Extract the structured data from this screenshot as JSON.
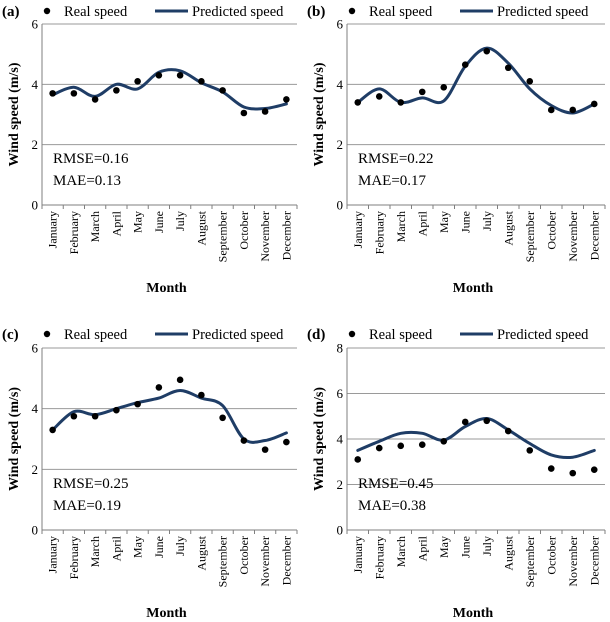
{
  "colors": {
    "line": "#1f3d66",
    "point": "#000000",
    "grid": "#9a9a9a",
    "axis": "#7f7f7f"
  },
  "chart_data": [
    {
      "type": "line",
      "panel_label": "(a)",
      "legend": {
        "real": "Real speed",
        "predicted": "Predicted speed"
      },
      "categories": [
        "January",
        "February",
        "March",
        "April",
        "May",
        "June",
        "July",
        "August",
        "September",
        "October",
        "November",
        "December"
      ],
      "series": [
        {
          "name": "Real speed",
          "kind": "scatter",
          "values": [
            3.7,
            3.7,
            3.5,
            3.8,
            4.1,
            4.3,
            4.3,
            4.1,
            3.8,
            3.05,
            3.1,
            3.5
          ]
        },
        {
          "name": "Predicted speed",
          "kind": "line",
          "values": [
            3.65,
            3.9,
            3.6,
            4.0,
            3.85,
            4.4,
            4.45,
            4.05,
            3.75,
            3.25,
            3.2,
            3.35
          ]
        }
      ],
      "ylim": [
        0,
        6
      ],
      "yticks": [
        0,
        2,
        4,
        6
      ],
      "xlabel": "Month",
      "ylabel": "Wind speed (m/s)",
      "stats": [
        "RMSE=0.16",
        "MAE=0.13"
      ]
    },
    {
      "type": "line",
      "panel_label": "(b)",
      "legend": {
        "real": "Real speed",
        "predicted": "Predicted speed"
      },
      "categories": [
        "January",
        "February",
        "March",
        "April",
        "May",
        "June",
        "July",
        "August",
        "September",
        "October",
        "November",
        "December"
      ],
      "series": [
        {
          "name": "Real speed",
          "kind": "scatter",
          "values": [
            3.4,
            3.6,
            3.4,
            3.75,
            3.9,
            4.65,
            5.1,
            4.55,
            4.1,
            3.15,
            3.15,
            3.35
          ]
        },
        {
          "name": "Predicted speed",
          "kind": "line",
          "values": [
            3.4,
            3.85,
            3.4,
            3.55,
            3.45,
            4.6,
            5.2,
            4.7,
            3.85,
            3.3,
            3.05,
            3.35
          ]
        }
      ],
      "ylim": [
        0,
        6
      ],
      "yticks": [
        0,
        2,
        4,
        6
      ],
      "xlabel": "Month",
      "ylabel": "Wind speed (m/s)",
      "stats": [
        "RMSE=0.22",
        "MAE=0.17"
      ]
    },
    {
      "type": "line",
      "panel_label": "(c)",
      "legend": {
        "real": "Real speed",
        "predicted": "Predicted speed"
      },
      "categories": [
        "January",
        "February",
        "March",
        "April",
        "May",
        "June",
        "July",
        "August",
        "September",
        "October",
        "November",
        "December"
      ],
      "series": [
        {
          "name": "Real speed",
          "kind": "scatter",
          "values": [
            3.3,
            3.75,
            3.75,
            3.95,
            4.15,
            4.7,
            4.95,
            4.45,
            3.7,
            2.95,
            2.65,
            2.9
          ]
        },
        {
          "name": "Predicted speed",
          "kind": "line",
          "values": [
            3.3,
            3.9,
            3.8,
            4.0,
            4.2,
            4.35,
            4.6,
            4.35,
            4.1,
            3.0,
            2.95,
            3.2
          ]
        }
      ],
      "ylim": [
        0,
        6
      ],
      "yticks": [
        0,
        2,
        4,
        6
      ],
      "xlabel": "Month",
      "ylabel": "Wind speed (m/s)",
      "stats": [
        "RMSE=0.25",
        "MAE=0.19"
      ]
    },
    {
      "type": "line",
      "panel_label": "(d)",
      "legend": {
        "real": "Real speed",
        "predicted": "Predicted speed"
      },
      "categories": [
        "January",
        "February",
        "March",
        "April",
        "May",
        "June",
        "July",
        "August",
        "September",
        "October",
        "November",
        "December"
      ],
      "series": [
        {
          "name": "Real speed",
          "kind": "scatter",
          "values": [
            3.1,
            3.6,
            3.7,
            3.75,
            3.9,
            4.75,
            4.8,
            4.35,
            3.5,
            2.7,
            2.5,
            2.65
          ]
        },
        {
          "name": "Predicted speed",
          "kind": "line",
          "values": [
            3.5,
            3.9,
            4.25,
            4.25,
            3.95,
            4.55,
            4.9,
            4.4,
            3.8,
            3.3,
            3.2,
            3.5
          ]
        }
      ],
      "ylim": [
        0,
        8
      ],
      "yticks": [
        0,
        2,
        4,
        6,
        8
      ],
      "xlabel": "Month",
      "ylabel": "Wind speed (m/s)",
      "stats": [
        "RMSE=0.45",
        "MAE=0.38"
      ]
    }
  ]
}
